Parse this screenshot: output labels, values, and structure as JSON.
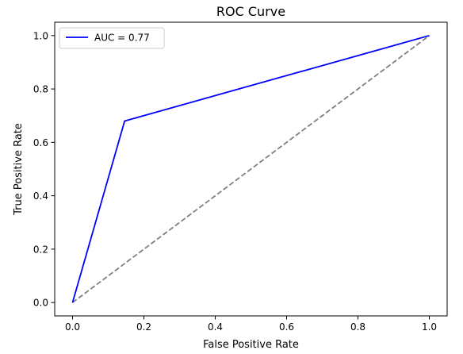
{
  "chart_data": {
    "type": "line",
    "title": "ROC Curve",
    "xlabel": "False Positive Rate",
    "ylabel": "True Positive Rate",
    "xlim": [
      -0.05,
      1.05
    ],
    "ylim": [
      -0.05,
      1.05
    ],
    "xticks": [
      0.0,
      0.2,
      0.4,
      0.6,
      0.8,
      1.0
    ],
    "yticks": [
      0.0,
      0.2,
      0.4,
      0.6,
      0.8,
      1.0
    ],
    "xtick_labels": [
      "0.0",
      "0.2",
      "0.4",
      "0.6",
      "0.8",
      "1.0"
    ],
    "ytick_labels": [
      "0.0",
      "0.2",
      "0.4",
      "0.6",
      "0.8",
      "1.0"
    ],
    "grid": false,
    "legend_position": "top-left",
    "series": [
      {
        "name": "AUC = 0.77",
        "x": [
          0.0,
          0.146,
          1.0
        ],
        "y": [
          0.0,
          0.68,
          1.0
        ],
        "color": "#0000ff",
        "style": "solid"
      },
      {
        "x": [
          0.0,
          1.0
        ],
        "y": [
          0.0,
          1.0
        ],
        "color": "#808080",
        "style": "dashed"
      }
    ]
  }
}
